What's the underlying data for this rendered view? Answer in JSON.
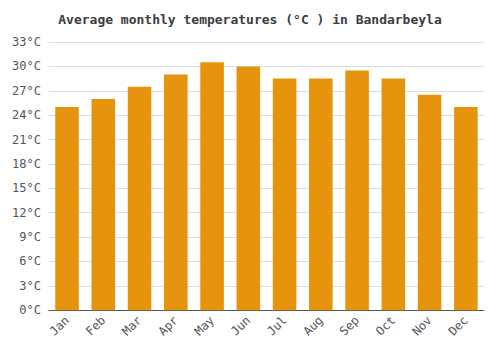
{
  "chart_data": {
    "type": "bar",
    "title": "Average monthly temperatures (°C ) in Bandarbeyla",
    "categories": [
      "Jan",
      "Feb",
      "Mar",
      "Apr",
      "May",
      "Jun",
      "Jul",
      "Aug",
      "Sep",
      "Oct",
      "Nov",
      "Dec"
    ],
    "values": [
      25.0,
      26.0,
      27.5,
      29.0,
      30.5,
      30.0,
      28.5,
      28.5,
      29.5,
      28.5,
      26.5,
      25.0
    ],
    "color": "#E6940D",
    "ylim": [
      0,
      33
    ],
    "yticks": [
      {
        "value": 0,
        "label": "0°C"
      },
      {
        "value": 3,
        "label": "3°C"
      },
      {
        "value": 6,
        "label": "6°C"
      },
      {
        "value": 9,
        "label": "9°C"
      },
      {
        "value": 12,
        "label": "12°C"
      },
      {
        "value": 15,
        "label": "15°C"
      },
      {
        "value": 18,
        "label": "18°C"
      },
      {
        "value": 21,
        "label": "21°C"
      },
      {
        "value": 24,
        "label": "24°C"
      },
      {
        "value": 27,
        "label": "27°C"
      },
      {
        "value": 30,
        "label": "30°C"
      },
      {
        "value": 33,
        "label": "33°C"
      }
    ],
    "grid": true
  }
}
